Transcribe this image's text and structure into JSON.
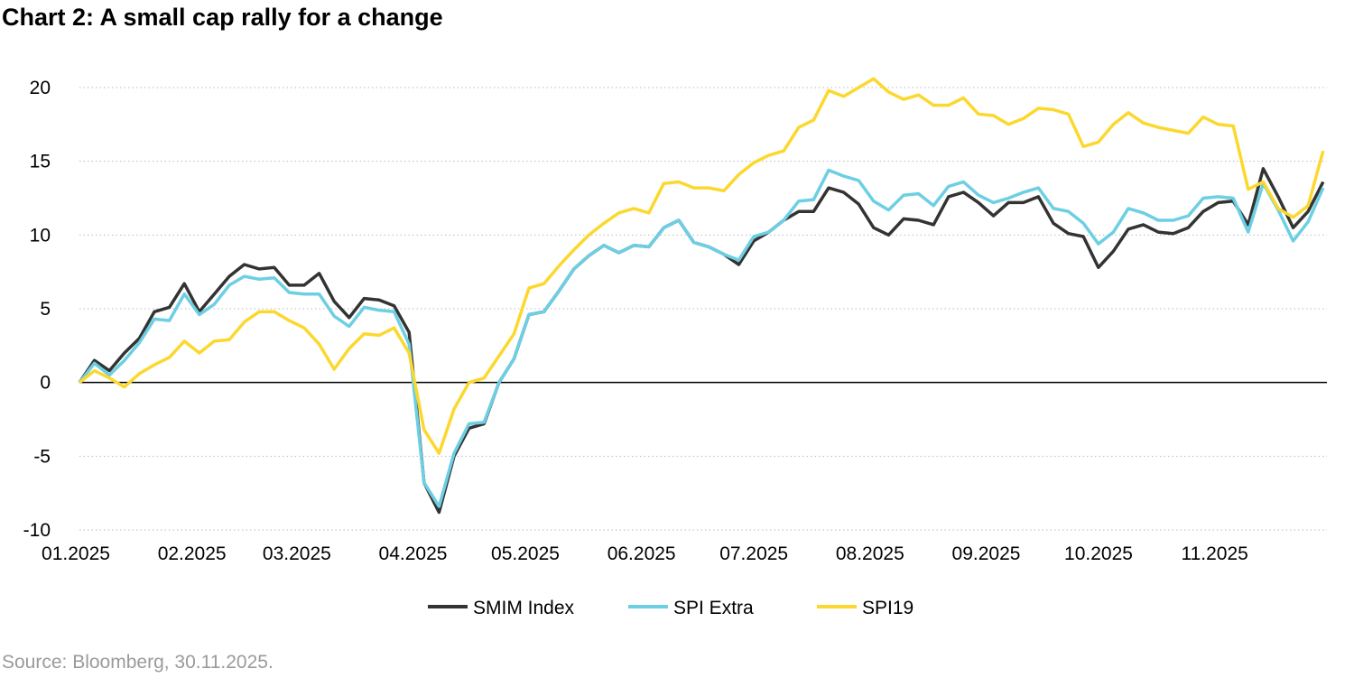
{
  "title": "Chart 2: A small cap rally for a change",
  "source": "Source: Bloomberg, 30.11.2025.",
  "chart_data": {
    "type": "line",
    "title": "Chart 2: A small cap rally for a change",
    "xlabel": "",
    "ylabel": "",
    "ylim": [
      -10,
      20
    ],
    "yticks": [
      -10,
      -5,
      0,
      5,
      10,
      15,
      20
    ],
    "ytick_labels": [
      "-10",
      "-5",
      "0",
      "5",
      "10",
      "15",
      "20"
    ],
    "xlim": [
      "2025-01-01",
      "2025-11-30"
    ],
    "xtick_dates": [
      "2025-01-01",
      "2025-02-01",
      "2025-03-01",
      "2025-04-01",
      "2025-05-01",
      "2025-06-01",
      "2025-07-01",
      "2025-08-01",
      "2025-09-01",
      "2025-10-01",
      "2025-11-01"
    ],
    "xtick_labels": [
      "01.2025",
      "02.2025",
      "03.2025",
      "04.2025",
      "05.2025",
      "06.2025",
      "07.2025",
      "08.2025",
      "09.2025",
      "10.2025",
      "11.2025"
    ],
    "grid": "horizontal dotted",
    "legend_position": "bottom",
    "x": [
      "2025-01-01",
      "2025-01-05",
      "2025-01-09",
      "2025-01-13",
      "2025-01-17",
      "2025-01-21",
      "2025-01-25",
      "2025-01-29",
      "2025-02-02",
      "2025-02-06",
      "2025-02-10",
      "2025-02-14",
      "2025-02-18",
      "2025-02-22",
      "2025-02-26",
      "2025-03-02",
      "2025-03-06",
      "2025-03-10",
      "2025-03-14",
      "2025-03-18",
      "2025-03-22",
      "2025-03-26",
      "2025-03-30",
      "2025-04-03",
      "2025-04-07",
      "2025-04-11",
      "2025-04-15",
      "2025-04-19",
      "2025-04-23",
      "2025-04-27",
      "2025-05-01",
      "2025-05-05",
      "2025-05-09",
      "2025-05-13",
      "2025-05-17",
      "2025-05-21",
      "2025-05-25",
      "2025-05-29",
      "2025-06-02",
      "2025-06-06",
      "2025-06-10",
      "2025-06-14",
      "2025-06-18",
      "2025-06-22",
      "2025-06-26",
      "2025-06-30",
      "2025-07-04",
      "2025-07-08",
      "2025-07-12",
      "2025-07-16",
      "2025-07-20",
      "2025-07-24",
      "2025-07-28",
      "2025-08-01",
      "2025-08-05",
      "2025-08-09",
      "2025-08-13",
      "2025-08-17",
      "2025-08-21",
      "2025-08-25",
      "2025-08-29",
      "2025-09-02",
      "2025-09-06",
      "2025-09-10",
      "2025-09-14",
      "2025-09-18",
      "2025-09-22",
      "2025-09-26",
      "2025-09-30",
      "2025-10-04",
      "2025-10-08",
      "2025-10-12",
      "2025-10-16",
      "2025-10-20",
      "2025-10-24",
      "2025-10-28",
      "2025-11-01",
      "2025-11-05",
      "2025-11-09",
      "2025-11-13",
      "2025-11-17",
      "2025-11-21",
      "2025-11-25",
      "2025-11-29"
    ],
    "series": [
      {
        "name": "SMIM Index",
        "color": "#333333",
        "values": [
          0,
          1.5,
          0.8,
          2.0,
          3.0,
          4.8,
          5.1,
          6.7,
          4.8,
          6.0,
          7.2,
          8.0,
          7.7,
          7.8,
          6.6,
          6.6,
          7.4,
          5.5,
          4.4,
          5.7,
          5.6,
          5.2,
          3.4,
          -6.8,
          -8.8,
          -5.0,
          -3.1,
          -2.8,
          0.0,
          1.6,
          4.6,
          4.8,
          6.2,
          7.7,
          8.6,
          9.3,
          8.8,
          9.3,
          9.2,
          10.5,
          11.0,
          9.5,
          9.2,
          8.7,
          8.0,
          9.6,
          10.2,
          11.0,
          11.6,
          11.6,
          13.2,
          12.9,
          12.1,
          10.5,
          10.0,
          11.1,
          11.0,
          10.7,
          12.6,
          12.9,
          12.2,
          11.3,
          12.2,
          12.2,
          12.6,
          10.8,
          10.1,
          9.9,
          7.8,
          8.9,
          10.4,
          10.7,
          10.2,
          10.1,
          10.5,
          11.6,
          12.2,
          12.3,
          10.7,
          14.5,
          12.6,
          10.5,
          11.6,
          13.6
        ]
      },
      {
        "name": "SPI Extra",
        "color": "#6ccfe3",
        "values": [
          0,
          1.3,
          0.5,
          1.5,
          2.7,
          4.3,
          4.2,
          6.0,
          4.6,
          5.3,
          6.6,
          7.2,
          7.0,
          7.1,
          6.1,
          6.0,
          6.0,
          4.5,
          3.8,
          5.1,
          4.9,
          4.8,
          2.6,
          -6.8,
          -8.4,
          -4.8,
          -2.8,
          -2.7,
          0.0,
          1.6,
          4.6,
          4.8,
          6.2,
          7.7,
          8.6,
          9.3,
          8.8,
          9.3,
          9.2,
          10.5,
          11.0,
          9.5,
          9.2,
          8.7,
          8.3,
          9.9,
          10.2,
          11.0,
          12.3,
          12.4,
          14.4,
          14.0,
          13.7,
          12.3,
          11.7,
          12.7,
          12.8,
          12.0,
          13.3,
          13.6,
          12.7,
          12.2,
          12.5,
          12.9,
          13.2,
          11.8,
          11.6,
          10.8,
          9.4,
          10.2,
          11.8,
          11.5,
          11.0,
          11.0,
          11.3,
          12.5,
          12.6,
          12.5,
          10.2,
          13.5,
          11.7,
          9.6,
          10.9,
          13.2
        ]
      },
      {
        "name": "SPI19",
        "color": "#fcd82e",
        "values": [
          0,
          0.8,
          0.3,
          -0.3,
          0.6,
          1.2,
          1.7,
          2.8,
          2.0,
          2.8,
          2.9,
          4.1,
          4.8,
          4.8,
          4.2,
          3.7,
          2.6,
          0.9,
          2.3,
          3.3,
          3.2,
          3.7,
          2.0,
          -3.2,
          -4.8,
          -1.8,
          0.0,
          0.3,
          1.8,
          3.3,
          6.4,
          6.7,
          7.9,
          9.0,
          10.0,
          10.8,
          11.5,
          11.8,
          11.5,
          13.5,
          13.6,
          13.2,
          13.2,
          13.0,
          14.1,
          14.9,
          15.4,
          15.7,
          17.3,
          17.8,
          19.8,
          19.4,
          20.0,
          20.6,
          19.7,
          19.2,
          19.5,
          18.8,
          18.8,
          19.3,
          18.2,
          18.1,
          17.5,
          17.9,
          18.6,
          18.5,
          18.2,
          16.0,
          16.3,
          17.5,
          18.3,
          17.6,
          17.3,
          17.1,
          16.9,
          18.0,
          17.5,
          17.4,
          13.1,
          13.6,
          11.8,
          11.2,
          12.0,
          15.7
        ]
      }
    ]
  }
}
